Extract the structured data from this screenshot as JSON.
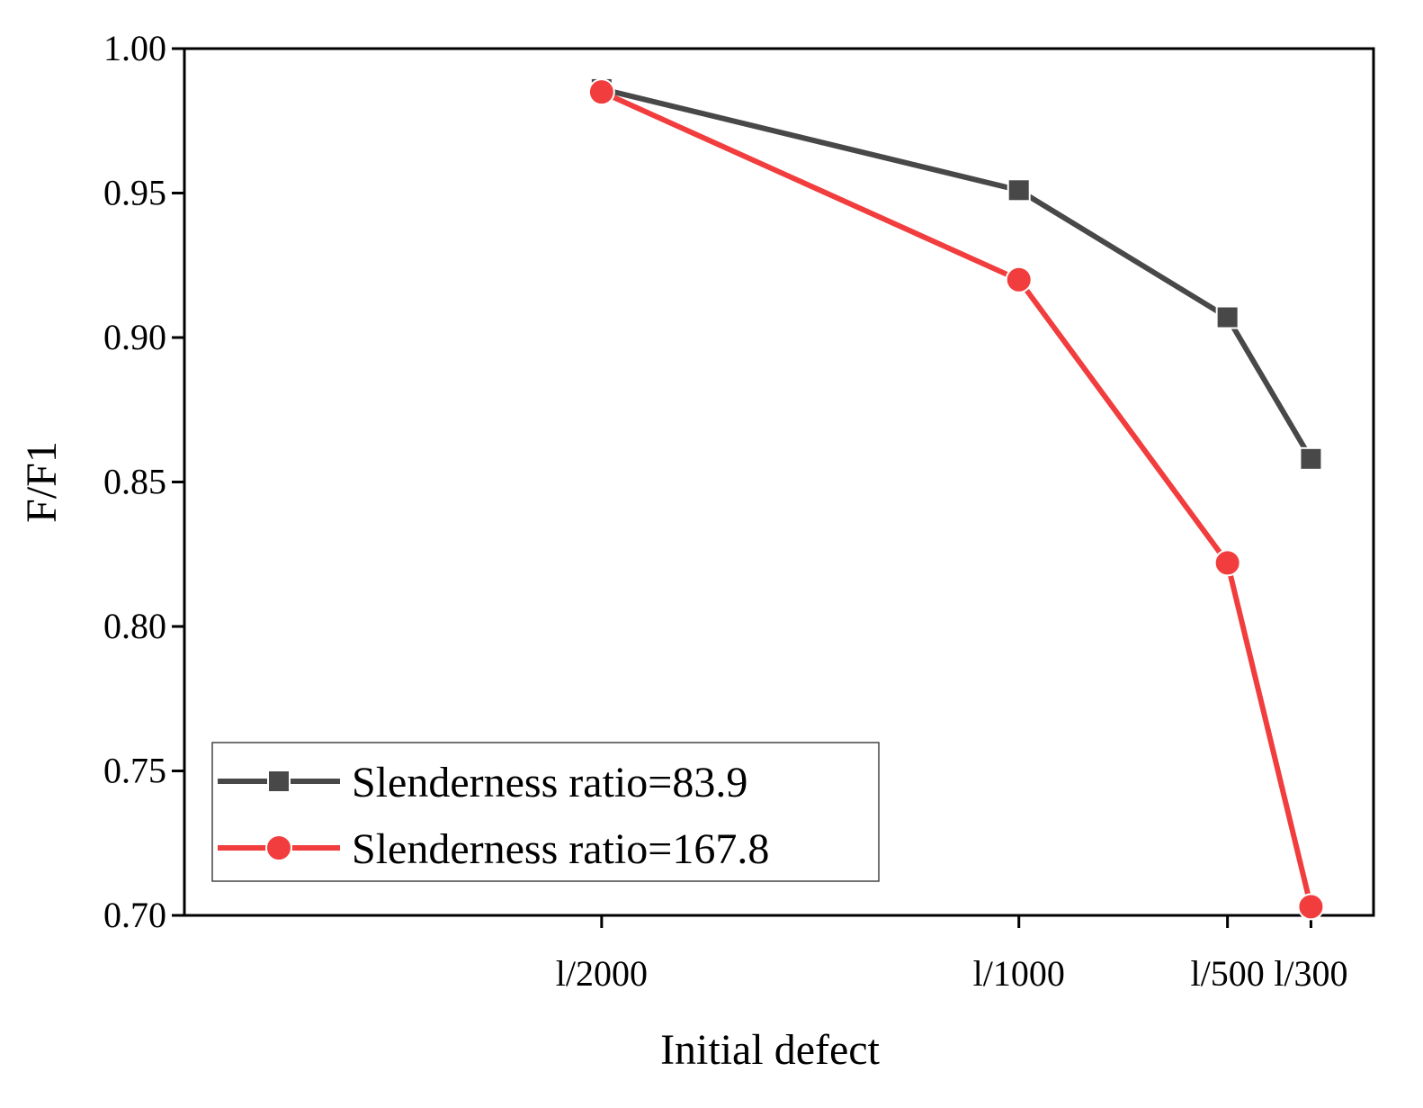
{
  "chart_data": {
    "type": "line",
    "title": "",
    "xlabel": "Initial defect",
    "ylabel": "F/F1",
    "ylim": [
      0.7,
      1.0
    ],
    "yticks": [
      "0.70",
      "0.75",
      "0.80",
      "0.85",
      "0.90",
      "0.95",
      "1.00"
    ],
    "categories": [
      "l/2000",
      "l/1000",
      "l/500",
      "l/300"
    ],
    "x_positions": [
      2000,
      1000,
      500,
      300
    ],
    "legend_location": "lower-left",
    "grid": false,
    "series": [
      {
        "name": "Slenderness ratio=83.9",
        "color": "#484848",
        "marker": "square",
        "values": [
          0.986,
          0.951,
          0.907,
          0.858
        ]
      },
      {
        "name": "Slenderness ratio=167.8",
        "color": "#f13d3d",
        "marker": "circle",
        "values": [
          0.985,
          0.92,
          0.822,
          0.703
        ]
      }
    ]
  }
}
